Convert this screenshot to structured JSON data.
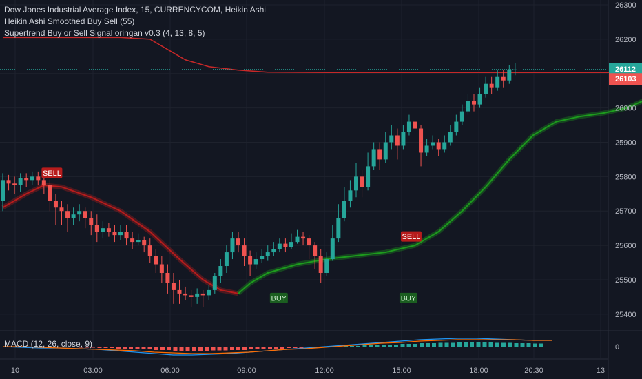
{
  "legend": {
    "title": "Dow Jones Industrial Average Index, 15, CURRENCYCOM, Heikin Ashi",
    "indicator1": "Heikin Ashi Smoothed Buy Sell  (55)",
    "indicator2": "Supertrend Buy or Sell Signal oringan v0.3 (4, 13, 8, 5)"
  },
  "macd_label": "MACD (12, 26, close, 9)",
  "macd_zero_label": "0",
  "colors": {
    "background": "#131722",
    "up": "#26a69a",
    "down": "#ef5350",
    "trend_up": "#1d9b1d",
    "trend_down": "#b71c1c",
    "axis_text": "#b2b5be",
    "price_tag_current": "#26a69a",
    "price_tag_level": "#ef5350"
  },
  "chart_data": {
    "type": "candlestick",
    "y_axis": {
      "ticks": [
        "26300",
        "26200",
        "26100",
        "26000",
        "25900",
        "25800",
        "25700",
        "25600",
        "25500",
        "25400"
      ],
      "ylim": [
        25380,
        26320
      ]
    },
    "x_axis": {
      "ticks": [
        "10",
        "03:00",
        "06:00",
        "09:00",
        "12:00",
        "15:00",
        "18:00",
        "20:30",
        "13"
      ]
    },
    "price_tags": [
      {
        "label": "26112",
        "value": 26112,
        "kind": "current"
      },
      {
        "label": "26103",
        "value": 26103,
        "kind": "level"
      }
    ],
    "signals": [
      {
        "label": "SELL",
        "kind": "sell",
        "bar": 8,
        "price": 25790
      },
      {
        "label": "BUY",
        "kind": "buy",
        "bar": 47,
        "price": 25470
      },
      {
        "label": "SELL",
        "kind": "sell",
        "bar": 69,
        "price": 25605
      },
      {
        "label": "BUY",
        "kind": "buy",
        "bar": 69,
        "price": 25470
      }
    ],
    "candles": [
      [
        25730,
        25790,
        25700,
        25810
      ],
      [
        25790,
        25780,
        25760,
        25805
      ],
      [
        25780,
        25775,
        25750,
        25800
      ],
      [
        25775,
        25795,
        25755,
        25810
      ],
      [
        25795,
        25790,
        25770,
        25810
      ],
      [
        25790,
        25800,
        25775,
        25815
      ],
      [
        25800,
        25790,
        25775,
        25815
      ],
      [
        25790,
        25775,
        25750,
        25800
      ],
      [
        25775,
        25730,
        25700,
        25790
      ],
      [
        25730,
        25710,
        25660,
        25750
      ],
      [
        25710,
        25700,
        25660,
        25730
      ],
      [
        25700,
        25680,
        25640,
        25720
      ],
      [
        25680,
        25690,
        25660,
        25710
      ],
      [
        25690,
        25700,
        25670,
        25720
      ],
      [
        25700,
        25680,
        25650,
        25710
      ],
      [
        25680,
        25660,
        25630,
        25700
      ],
      [
        25660,
        25640,
        25610,
        25690
      ],
      [
        25640,
        25650,
        25620,
        25670
      ],
      [
        25650,
        25640,
        25625,
        25665
      ],
      [
        25640,
        25630,
        25610,
        25660
      ],
      [
        25630,
        25640,
        25615,
        25660
      ],
      [
        25640,
        25620,
        25600,
        25660
      ],
      [
        25620,
        25610,
        25590,
        25640
      ],
      [
        25610,
        25615,
        25600,
        25635
      ],
      [
        25615,
        25600,
        25580,
        25625
      ],
      [
        25600,
        25570,
        25550,
        25620
      ],
      [
        25570,
        25545,
        25520,
        25590
      ],
      [
        25545,
        25520,
        25490,
        25570
      ],
      [
        25520,
        25490,
        25460,
        25545
      ],
      [
        25490,
        25470,
        25430,
        25520
      ],
      [
        25470,
        25460,
        25430,
        25500
      ],
      [
        25460,
        25455,
        25440,
        25480
      ],
      [
        25455,
        25450,
        25420,
        25470
      ],
      [
        25450,
        25460,
        25430,
        25475
      ],
      [
        25460,
        25455,
        25420,
        25470
      ],
      [
        25455,
        25470,
        25440,
        25485
      ],
      [
        25470,
        25510,
        25460,
        25520
      ],
      [
        25510,
        25540,
        25490,
        25560
      ],
      [
        25540,
        25580,
        25520,
        25600
      ],
      [
        25580,
        25620,
        25560,
        25640
      ],
      [
        25620,
        25600,
        25580,
        25640
      ],
      [
        25600,
        25570,
        25540,
        25620
      ],
      [
        25570,
        25545,
        25510,
        25585
      ],
      [
        25545,
        25560,
        25530,
        25580
      ],
      [
        25560,
        25570,
        25550,
        25590
      ],
      [
        25570,
        25580,
        25555,
        25600
      ],
      [
        25580,
        25590,
        25570,
        25610
      ],
      [
        25590,
        25605,
        25580,
        25620
      ],
      [
        25605,
        25595,
        25580,
        25620
      ],
      [
        25595,
        25610,
        25590,
        25635
      ],
      [
        25610,
        25625,
        25605,
        25645
      ],
      [
        25625,
        25620,
        25600,
        25640
      ],
      [
        25620,
        25600,
        25560,
        25630
      ],
      [
        25600,
        25570,
        25530,
        25610
      ],
      [
        25570,
        25520,
        25490,
        25590
      ],
      [
        25520,
        25560,
        25510,
        25580
      ],
      [
        25560,
        25620,
        25555,
        25660
      ],
      [
        25620,
        25680,
        25610,
        25720
      ],
      [
        25680,
        25730,
        25670,
        25770
      ],
      [
        25730,
        25760,
        25710,
        25790
      ],
      [
        25760,
        25800,
        25740,
        25840
      ],
      [
        25800,
        25770,
        25740,
        25820
      ],
      [
        25770,
        25830,
        25760,
        25870
      ],
      [
        25830,
        25880,
        25820,
        25900
      ],
      [
        25880,
        25850,
        25820,
        25900
      ],
      [
        25850,
        25900,
        25840,
        25930
      ],
      [
        25900,
        25920,
        25880,
        25950
      ],
      [
        25920,
        25890,
        25850,
        25940
      ],
      [
        25890,
        25930,
        25880,
        25950
      ],
      [
        25930,
        25960,
        25920,
        25980
      ],
      [
        25960,
        25940,
        25900,
        25980
      ],
      [
        25940,
        25870,
        25830,
        25950
      ],
      [
        25870,
        25890,
        25860,
        25910
      ],
      [
        25890,
        25900,
        25880,
        25920
      ],
      [
        25900,
        25880,
        25860,
        25910
      ],
      [
        25880,
        25900,
        25870,
        25920
      ],
      [
        25900,
        25930,
        25890,
        25950
      ],
      [
        25930,
        25960,
        25920,
        25980
      ],
      [
        25960,
        25990,
        25950,
        26010
      ],
      [
        25990,
        26020,
        25980,
        26040
      ],
      [
        26020,
        26010,
        25990,
        26040
      ],
      [
        26010,
        26040,
        26000,
        26060
      ],
      [
        26040,
        26070,
        26030,
        26090
      ],
      [
        26070,
        26060,
        26040,
        26090
      ],
      [
        26060,
        26090,
        26050,
        26110
      ],
      [
        26090,
        26080,
        26060,
        26110
      ],
      [
        26080,
        26110,
        26070,
        26125
      ],
      [
        26110,
        26112,
        26095,
        26130
      ]
    ],
    "trend_line": [
      [
        0,
        25710
      ],
      [
        4,
        25750
      ],
      [
        7,
        25775
      ],
      [
        10,
        25770
      ],
      [
        15,
        25740
      ],
      [
        20,
        25700
      ],
      [
        25,
        25640
      ],
      [
        30,
        25560
      ],
      [
        34,
        25500
      ],
      [
        37,
        25470
      ],
      [
        40,
        25460
      ],
      [
        42,
        25490
      ],
      [
        45,
        25520
      ],
      [
        50,
        25545
      ],
      [
        55,
        25560
      ],
      [
        60,
        25570
      ],
      [
        65,
        25580
      ],
      [
        70,
        25600
      ],
      [
        74,
        25640
      ],
      [
        78,
        25700
      ],
      [
        82,
        25770
      ],
      [
        86,
        25850
      ],
      [
        90,
        25920
      ],
      [
        94,
        25960
      ],
      [
        98,
        25975
      ],
      [
        102,
        25985
      ],
      [
        106,
        26000
      ],
      [
        110,
        26030
      ],
      [
        114,
        26060
      ],
      [
        118,
        26090
      ],
      [
        122,
        26120
      ],
      [
        125,
        26150
      ]
    ],
    "trend_colors": {
      "down_until_bar": 40
    },
    "upper_line": [
      [
        0,
        26205
      ],
      [
        10,
        26205
      ],
      [
        20,
        26205
      ],
      [
        25,
        26200
      ],
      [
        28,
        26170
      ],
      [
        31,
        26140
      ],
      [
        35,
        26120
      ],
      [
        40,
        26110
      ],
      [
        45,
        26104
      ],
      [
        55,
        26103
      ],
      [
        70,
        26103
      ],
      [
        85,
        26103
      ],
      [
        100,
        26103
      ],
      [
        115,
        26103
      ],
      [
        125,
        26103
      ]
    ],
    "spike": {
      "bar": 123,
      "from": 26000,
      "to": 25520
    },
    "arrow": {
      "bar": 126,
      "from": 25970,
      "to": 26095
    },
    "macd": {
      "macd": [
        0,
        -1,
        -2,
        -2,
        -3,
        -4,
        -6,
        -8,
        -10,
        -12,
        -12,
        -11,
        -10,
        -8,
        -6,
        -4,
        -2,
        0,
        2,
        4,
        6,
        8,
        10,
        11,
        12,
        12,
        11,
        10,
        9,
        9
      ],
      "signal": [
        0,
        0,
        -1,
        -2,
        -3,
        -4,
        -5,
        -6,
        -8,
        -9,
        -10,
        -10,
        -9,
        -8,
        -6,
        -4,
        -3,
        -1,
        1,
        3,
        5,
        6,
        8,
        9,
        10,
        10,
        10,
        10,
        9,
        9
      ]
    }
  }
}
